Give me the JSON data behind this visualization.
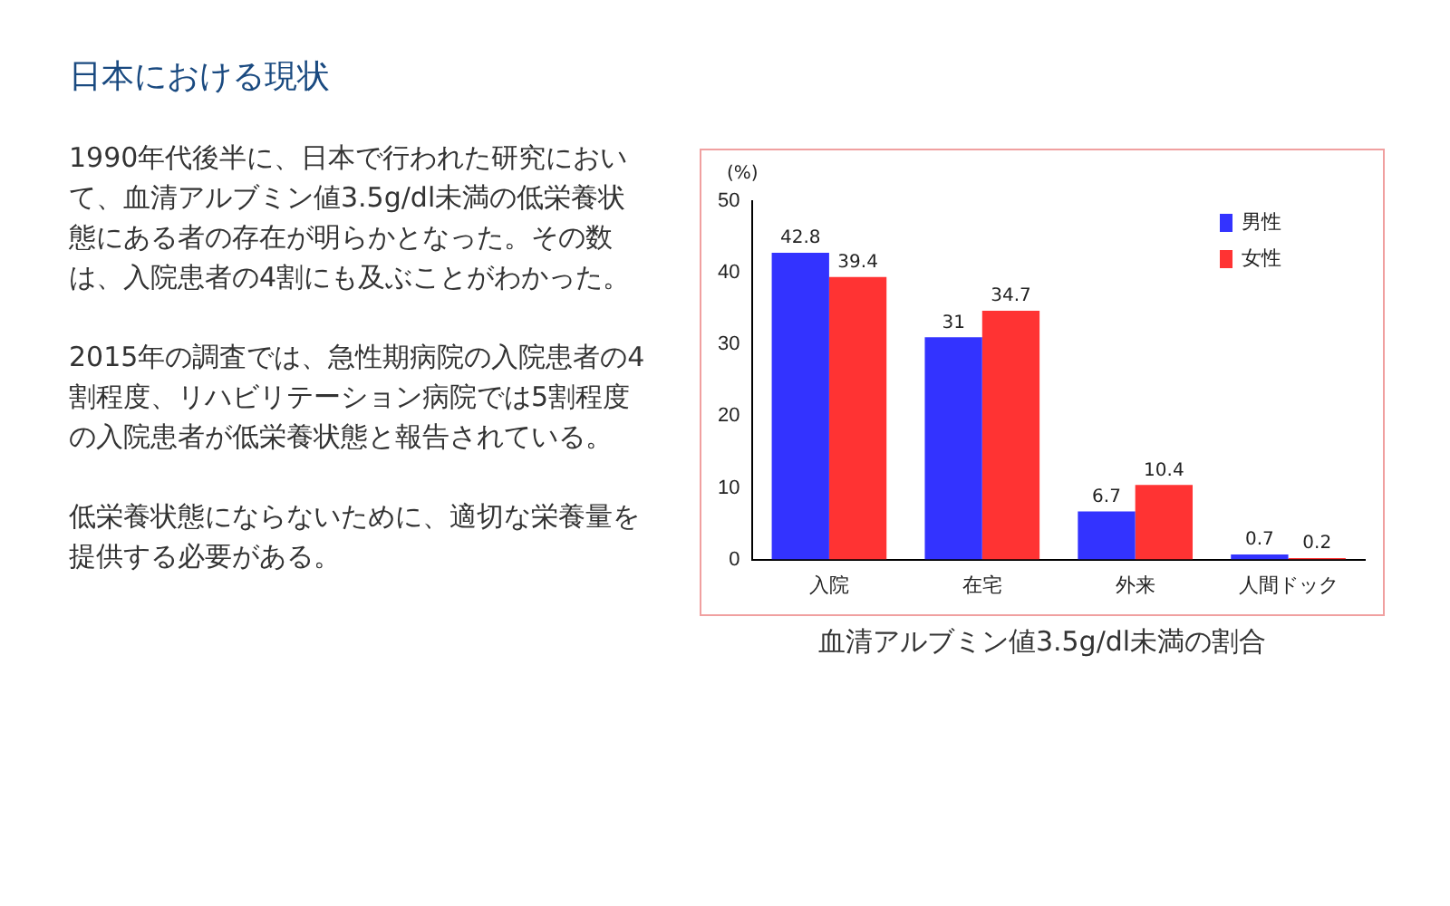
{
  "chart_data": {
    "type": "bar",
    "title": "血清アルブミン値3.5g/dl未満の割合",
    "ylabel": "(%)",
    "annotations": [
      "日本における現状",
      "1990年代後半に、日本で行われた研究において、血清アルブミン値3.5g/dl未満の低栄養状態にある者の存在が明らかとなった。その数は、入院患者の4割にも及ぶことがわかった。",
      "2015年の調査では、急性期病院の入院患者の4割程度、リハビリテーション病院では5割程度の入院患者が低栄養状態と報告されている。",
      "低栄養状態にならないために、適切な栄養量を提供する必要がある。"
    ],
    "categories": [
      "入院",
      "在宅",
      "外来",
      "人間ドック"
    ],
    "series": [
      {
        "name": "男性",
        "color": "#3333ff",
        "values": [
          42.8,
          31,
          6.7,
          0.7
        ]
      },
      {
        "name": "女性",
        "color": "#ff3333",
        "values": [
          39.4,
          34.7,
          10.4,
          0.2
        ]
      }
    ],
    "ylim": [
      0,
      50
    ],
    "yticks": [
      0,
      10,
      20,
      30,
      40,
      50
    ],
    "data_labels": true,
    "legend": "top right",
    "grid": false
  }
}
